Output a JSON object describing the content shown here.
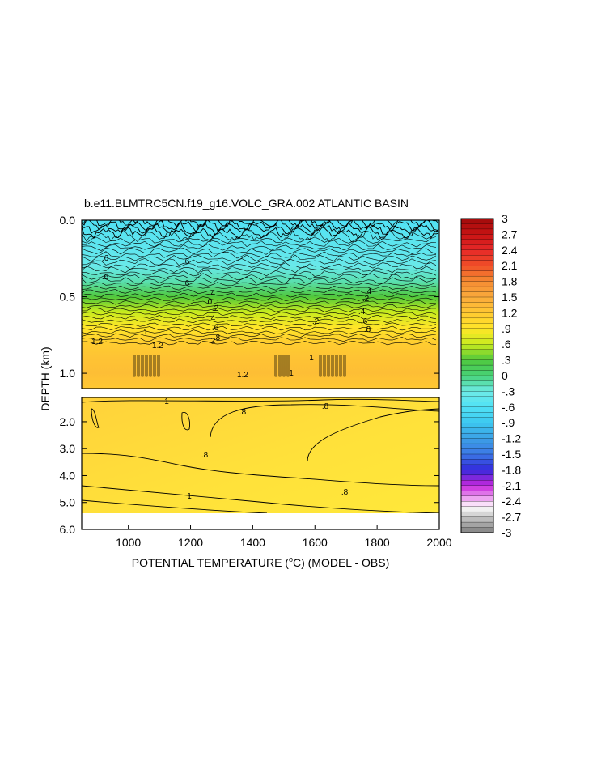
{
  "chart_data": {
    "type": "heatmap",
    "title": "b.e11.BLMTRC5CN.f19_g16.VOLC_GRA.002 ATLANTIC BASIN",
    "xlabel_main": "POTENTIAL TEMPERATURE (",
    "xlabel_degree": "o",
    "xlabel_rest": "C) (MODEL - OBS)",
    "ylabel": "DEPTH (km)",
    "xlim": [
      850,
      2000
    ],
    "x_ticks": [
      1000,
      1200,
      1400,
      1600,
      1800,
      2000
    ],
    "x_tick_labels": [
      "1000",
      "1200",
      "1400",
      "1600",
      "1800",
      "2000"
    ],
    "upper_panel": {
      "ylim": [
        0.0,
        1.1
      ],
      "y_ticks": [
        0.0,
        0.5,
        1.0
      ],
      "y_tick_labels": [
        "0.0",
        "0.5",
        "1.0"
      ]
    },
    "lower_panel": {
      "ylim": [
        1.1,
        6.0
      ],
      "y_ticks": [
        2.0,
        3.0,
        4.0,
        5.0,
        6.0
      ],
      "y_tick_labels": [
        "2.0",
        "3.0",
        "4.0",
        "5.0",
        "6.0"
      ]
    },
    "colorbar": {
      "min": -3,
      "max": 3,
      "labels": [
        "3",
        "2.7",
        "2.4",
        "2.1",
        "1.8",
        "1.5",
        "1.2",
        ".9",
        ".6",
        ".3",
        "0",
        "-.3",
        "-.6",
        "-.9",
        "-1.2",
        "-1.5",
        "-1.8",
        "-2.1",
        "-2.4",
        "-2.7",
        "-3"
      ],
      "label_values": [
        3,
        2.7,
        2.4,
        2.1,
        1.8,
        1.5,
        1.2,
        0.9,
        0.6,
        0.3,
        0,
        -0.3,
        -0.6,
        -0.9,
        -1.2,
        -1.5,
        -1.8,
        -2.1,
        -2.4,
        -2.7,
        -3
      ]
    },
    "depth_profile": [
      {
        "depth": 0.0,
        "value": -0.6
      },
      {
        "depth": 0.1,
        "value": -0.5
      },
      {
        "depth": 0.2,
        "value": -0.45
      },
      {
        "depth": 0.3,
        "value": -0.35
      },
      {
        "depth": 0.4,
        "value": -0.15
      },
      {
        "depth": 0.5,
        "value": 0.3
      },
      {
        "depth": 0.6,
        "value": 0.6
      },
      {
        "depth": 0.7,
        "value": 0.9
      },
      {
        "depth": 0.8,
        "value": 1.15
      },
      {
        "depth": 0.9,
        "value": 1.25
      },
      {
        "depth": 1.0,
        "value": 1.3
      },
      {
        "depth": 1.1,
        "value": 1.2
      }
    ],
    "deep_value_range": [
      0.7,
      1.2
    ],
    "contour_labels_upper": [
      ".6",
      ".6",
      ".6",
      ".6",
      ".4",
      ".0",
      ".2",
      ".4",
      ".6",
      ".8",
      ".4",
      ".2",
      ".4",
      ".6",
      ".8",
      "1",
      "1.2",
      "1",
      "1.2",
      "1",
      "1.2",
      ".2",
      ".2"
    ],
    "contour_labels_lower": [
      "1",
      ".8",
      ".8",
      ".8",
      ".8",
      "1"
    ]
  }
}
